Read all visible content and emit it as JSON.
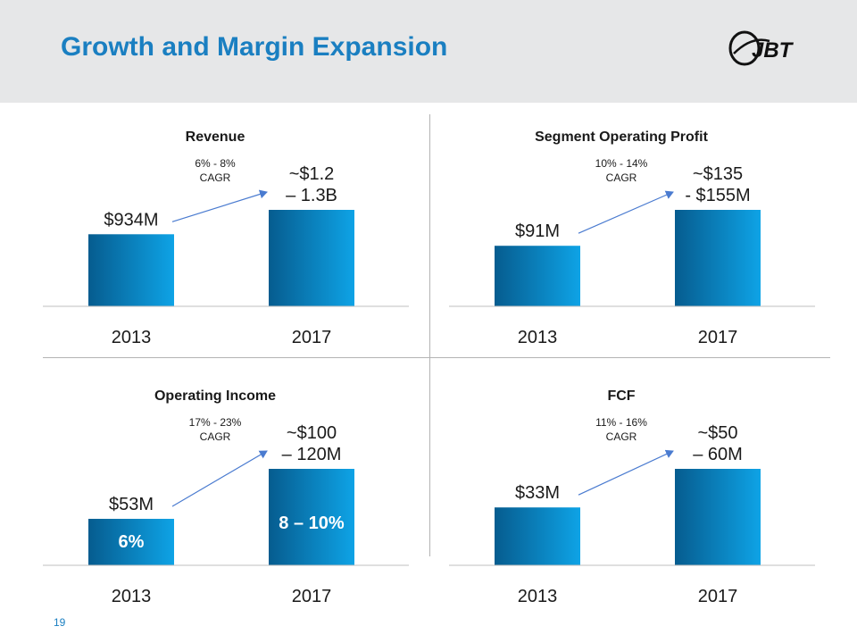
{
  "slide": {
    "title": "Growth and Margin Expansion",
    "page_number": "19",
    "logo_text": "JBT"
  },
  "colors": {
    "title": "#1a7fc1",
    "bar_dark": "#065c8f",
    "bar_light": "#0ea3e6",
    "arrow": "#4a7bd0",
    "header_bg": "#e6e7e8"
  },
  "chart_data": [
    {
      "type": "bar",
      "title": "Revenue",
      "categories": [
        "2013",
        "2017"
      ],
      "values": [
        934,
        1250
      ],
      "unit": "$M",
      "data_labels": [
        "$934M",
        "~$1.2 – 1.3B"
      ],
      "growth_label": [
        "6% - 8%",
        "CAGR"
      ],
      "inner_labels": []
    },
    {
      "type": "bar",
      "title": "Segment Operating Profit",
      "categories": [
        "2013",
        "2017"
      ],
      "values": [
        91,
        145
      ],
      "unit": "$M",
      "data_labels": [
        "$91M",
        "~$135 - $155M"
      ],
      "growth_label": [
        "10% - 14%",
        "CAGR"
      ],
      "inner_labels": []
    },
    {
      "type": "bar",
      "title": "Operating Income",
      "categories": [
        "2013",
        "2017"
      ],
      "values": [
        53,
        110
      ],
      "unit": "$M",
      "data_labels": [
        "$53M",
        "~$100 – 120M"
      ],
      "growth_label": [
        "17% - 23%",
        "CAGR"
      ],
      "inner_labels": [
        "6%",
        "8 – 10%"
      ]
    },
    {
      "type": "bar",
      "title": "FCF",
      "categories": [
        "2013",
        "2017"
      ],
      "values": [
        33,
        55
      ],
      "unit": "$M",
      "data_labels": [
        "$33M",
        "~$50 – 60M"
      ],
      "growth_label": [
        "11% - 16%",
        "CAGR"
      ],
      "inner_labels": []
    }
  ]
}
